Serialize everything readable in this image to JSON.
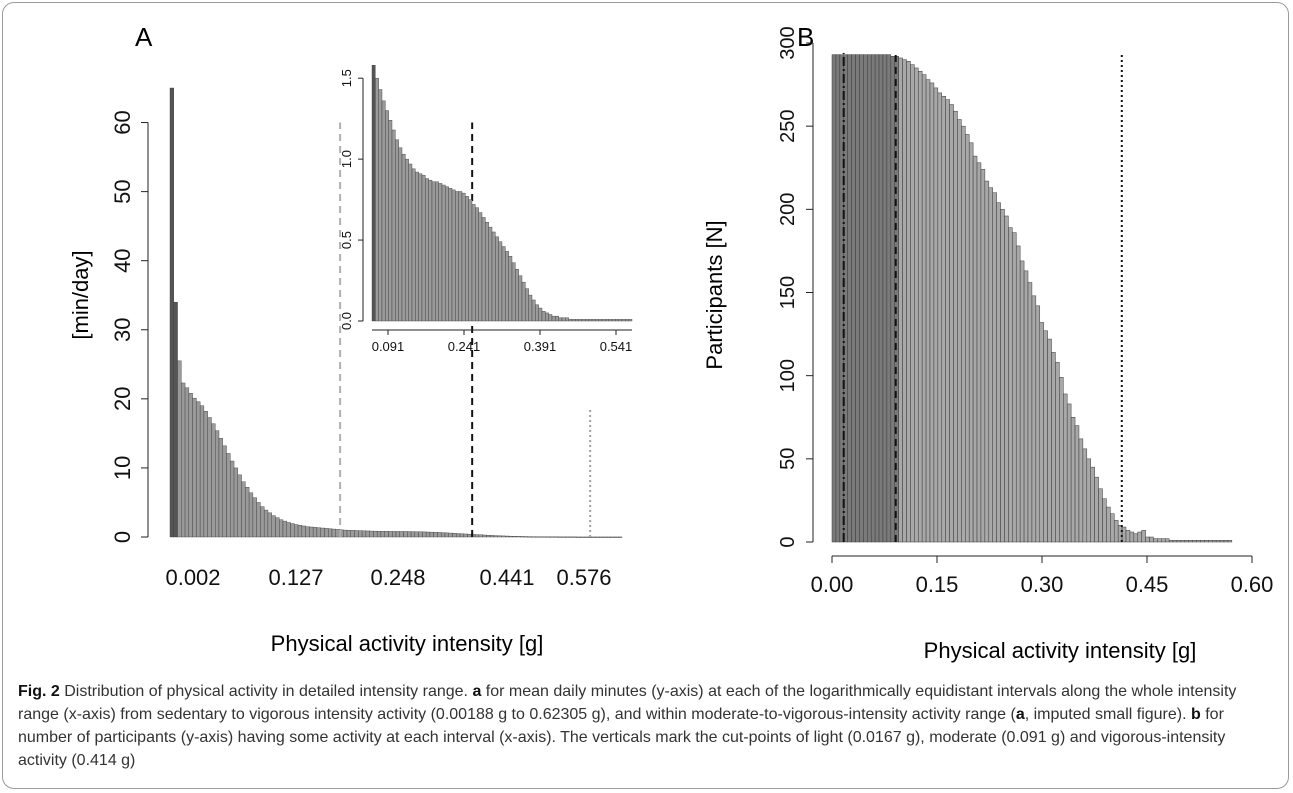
{
  "chart_data": [
    {
      "type": "bar",
      "panel_label": "A",
      "xlabel": "Physical activity intensity  [g]",
      "ylabel": "[min/day]",
      "ylim": [
        0,
        65
      ],
      "yticks": [
        0,
        10,
        20,
        30,
        40,
        50,
        60
      ],
      "x_tick_labels": [
        "0.002",
        "0.127",
        "0.248",
        "0.441",
        "0.576"
      ],
      "x_scale": "log-equidistant intervals (0.00188 g to 0.62305 g)",
      "values_min_per_day": [
        65,
        34,
        25.5,
        22.3,
        21.6,
        20.8,
        20.1,
        19.6,
        19.0,
        18.2,
        17.3,
        16.4,
        15.4,
        14.3,
        13.2,
        12.1,
        11.0,
        10.0,
        9.0,
        8.0,
        7.2,
        6.4,
        5.7,
        5.0,
        4.4,
        3.9,
        3.5,
        3.1,
        2.8,
        2.5,
        2.3,
        2.1,
        1.95,
        1.8,
        1.7,
        1.6,
        1.5,
        1.45,
        1.4,
        1.35,
        1.3,
        1.25,
        1.2,
        1.15,
        1.1,
        1.05,
        1.0,
        0.98,
        0.96,
        0.94,
        0.92,
        0.9,
        0.88,
        0.86,
        0.85,
        0.84,
        0.83,
        0.82,
        0.81,
        0.8,
        0.8,
        0.8,
        0.8,
        0.79,
        0.78,
        0.77,
        0.76,
        0.74,
        0.72,
        0.7,
        0.68,
        0.66,
        0.63,
        0.6,
        0.57,
        0.54,
        0.5,
        0.47,
        0.44,
        0.41,
        0.38,
        0.35,
        0.32,
        0.29,
        0.26,
        0.23,
        0.2,
        0.18,
        0.16,
        0.14,
        0.12,
        0.1,
        0.09,
        0.08,
        0.07,
        0.06,
        0.05,
        0.05,
        0.04,
        0.04,
        0.03,
        0.03,
        0.03,
        0.02,
        0.02,
        0.02,
        0.02,
        0.02,
        0.01,
        0.01,
        0.01,
        0.01,
        0.01,
        0.01,
        0.01,
        0.01,
        0.01,
        0.01,
        0.01,
        0.01
      ],
      "cut_points": [
        {
          "label": "light",
          "value_g": 0.0167,
          "style": "dashed",
          "color": "#b0b0b0",
          "height": 60
        },
        {
          "label": "moderate",
          "value_g": 0.091,
          "style": "dashed",
          "color": "#111111",
          "height": 60
        },
        {
          "label": "vigorous",
          "value_g": 0.414,
          "style": "dotted",
          "color": "#a0a0a0",
          "height": 18.5
        }
      ],
      "inset": {
        "ylim": [
          0,
          1.6
        ],
        "yticks": [
          "0.0",
          "0.5",
          "1.0",
          "1.5"
        ],
        "x_tick_labels": [
          "0.091",
          "0.241",
          "0.391",
          "0.541"
        ],
        "values": [
          1.58,
          1.5,
          1.43,
          1.36,
          1.3,
          1.24,
          1.18,
          1.12,
          1.07,
          1.03,
          1.0,
          0.97,
          0.94,
          0.92,
          0.91,
          0.9,
          0.88,
          0.87,
          0.86,
          0.86,
          0.85,
          0.84,
          0.83,
          0.82,
          0.81,
          0.8,
          0.8,
          0.79,
          0.77,
          0.75,
          0.72,
          0.7,
          0.67,
          0.64,
          0.61,
          0.58,
          0.55,
          0.52,
          0.49,
          0.46,
          0.43,
          0.4,
          0.36,
          0.32,
          0.28,
          0.24,
          0.2,
          0.16,
          0.13,
          0.1,
          0.08,
          0.06,
          0.05,
          0.04,
          0.03,
          0.03,
          0.02,
          0.02,
          0.02,
          0.01,
          0.01,
          0.01,
          0.01,
          0.01,
          0.01,
          0.01,
          0.01,
          0.01,
          0.01,
          0.01,
          0.01,
          0.01,
          0.01,
          0.01,
          0.01,
          0.01,
          0.01,
          0.01
        ]
      }
    },
    {
      "type": "bar",
      "panel_label": "B",
      "xlabel": "Physical activity intensity [g]",
      "ylabel": "Participants [N]",
      "ylim": [
        0,
        300
      ],
      "xlim": [
        0,
        0.6
      ],
      "yticks": [
        0,
        50,
        100,
        150,
        200,
        250,
        300
      ],
      "xticks": [
        0.0,
        0.15,
        0.3,
        0.45,
        0.6
      ],
      "x_tick_labels": [
        "0.00",
        "0.15",
        "0.30",
        "0.45",
        "0.60"
      ],
      "bins": [
        {
          "x": 0.0,
          "y": 293
        },
        {
          "x": 0.0056,
          "y": 293
        },
        {
          "x": 0.0112,
          "y": 293
        },
        {
          "x": 0.0168,
          "y": 293
        },
        {
          "x": 0.0224,
          "y": 293
        },
        {
          "x": 0.028,
          "y": 293
        },
        {
          "x": 0.0336,
          "y": 293
        },
        {
          "x": 0.0392,
          "y": 293
        },
        {
          "x": 0.0448,
          "y": 293
        },
        {
          "x": 0.0504,
          "y": 293
        },
        {
          "x": 0.056,
          "y": 293
        },
        {
          "x": 0.0616,
          "y": 293
        },
        {
          "x": 0.0672,
          "y": 293
        },
        {
          "x": 0.0728,
          "y": 293
        },
        {
          "x": 0.0784,
          "y": 293
        },
        {
          "x": 0.084,
          "y": 292
        },
        {
          "x": 0.0896,
          "y": 292
        },
        {
          "x": 0.0952,
          "y": 291
        },
        {
          "x": 0.1008,
          "y": 290
        },
        {
          "x": 0.1064,
          "y": 289
        },
        {
          "x": 0.112,
          "y": 287
        },
        {
          "x": 0.1176,
          "y": 285
        },
        {
          "x": 0.1232,
          "y": 283
        },
        {
          "x": 0.1288,
          "y": 281
        },
        {
          "x": 0.1344,
          "y": 278
        },
        {
          "x": 0.14,
          "y": 276
        },
        {
          "x": 0.1456,
          "y": 273
        },
        {
          "x": 0.1512,
          "y": 270
        },
        {
          "x": 0.1568,
          "y": 268
        },
        {
          "x": 0.1624,
          "y": 266
        },
        {
          "x": 0.168,
          "y": 263
        },
        {
          "x": 0.1736,
          "y": 259
        },
        {
          "x": 0.1792,
          "y": 254
        },
        {
          "x": 0.1848,
          "y": 250
        },
        {
          "x": 0.1904,
          "y": 245
        },
        {
          "x": 0.196,
          "y": 240
        },
        {
          "x": 0.2016,
          "y": 232
        },
        {
          "x": 0.2072,
          "y": 228
        },
        {
          "x": 0.2128,
          "y": 224
        },
        {
          "x": 0.2184,
          "y": 217
        },
        {
          "x": 0.224,
          "y": 213
        },
        {
          "x": 0.2296,
          "y": 210
        },
        {
          "x": 0.2352,
          "y": 204
        },
        {
          "x": 0.2408,
          "y": 200
        },
        {
          "x": 0.2464,
          "y": 196
        },
        {
          "x": 0.252,
          "y": 189
        },
        {
          "x": 0.2576,
          "y": 186
        },
        {
          "x": 0.2632,
          "y": 178
        },
        {
          "x": 0.2688,
          "y": 169
        },
        {
          "x": 0.2744,
          "y": 163
        },
        {
          "x": 0.28,
          "y": 156
        },
        {
          "x": 0.2856,
          "y": 148
        },
        {
          "x": 0.2912,
          "y": 142
        },
        {
          "x": 0.2968,
          "y": 132
        },
        {
          "x": 0.3024,
          "y": 127
        },
        {
          "x": 0.308,
          "y": 122
        },
        {
          "x": 0.3136,
          "y": 114
        },
        {
          "x": 0.3192,
          "y": 108
        },
        {
          "x": 0.3248,
          "y": 99
        },
        {
          "x": 0.3304,
          "y": 89
        },
        {
          "x": 0.336,
          "y": 83
        },
        {
          "x": 0.3416,
          "y": 75
        },
        {
          "x": 0.3472,
          "y": 70
        },
        {
          "x": 0.3528,
          "y": 62
        },
        {
          "x": 0.3584,
          "y": 56
        },
        {
          "x": 0.364,
          "y": 50
        },
        {
          "x": 0.3696,
          "y": 45
        },
        {
          "x": 0.3752,
          "y": 39
        },
        {
          "x": 0.3808,
          "y": 32
        },
        {
          "x": 0.3864,
          "y": 26
        },
        {
          "x": 0.392,
          "y": 21
        },
        {
          "x": 0.3976,
          "y": 17
        },
        {
          "x": 0.4032,
          "y": 13
        },
        {
          "x": 0.4088,
          "y": 10
        },
        {
          "x": 0.4144,
          "y": 9
        },
        {
          "x": 0.42,
          "y": 7
        },
        {
          "x": 0.4256,
          "y": 6
        },
        {
          "x": 0.4312,
          "y": 5
        },
        {
          "x": 0.4368,
          "y": 6
        },
        {
          "x": 0.4424,
          "y": 7
        },
        {
          "x": 0.448,
          "y": 3
        },
        {
          "x": 0.4536,
          "y": 3
        },
        {
          "x": 0.4592,
          "y": 2
        },
        {
          "x": 0.4648,
          "y": 2
        },
        {
          "x": 0.4704,
          "y": 2
        },
        {
          "x": 0.476,
          "y": 2
        },
        {
          "x": 0.4816,
          "y": 1
        },
        {
          "x": 0.4872,
          "y": 1
        },
        {
          "x": 0.4928,
          "y": 1
        },
        {
          "x": 0.4984,
          "y": 1
        },
        {
          "x": 0.504,
          "y": 1
        },
        {
          "x": 0.5096,
          "y": 1
        },
        {
          "x": 0.5152,
          "y": 1
        },
        {
          "x": 0.5208,
          "y": 1
        },
        {
          "x": 0.5264,
          "y": 1
        },
        {
          "x": 0.532,
          "y": 1
        },
        {
          "x": 0.5376,
          "y": 1
        },
        {
          "x": 0.5432,
          "y": 1
        },
        {
          "x": 0.5488,
          "y": 1
        },
        {
          "x": 0.5544,
          "y": 1
        },
        {
          "x": 0.56,
          "y": 1
        },
        {
          "x": 0.5656,
          "y": 1
        }
      ],
      "bin_width": 0.0056,
      "cut_points": [
        {
          "label": "light",
          "value_g": 0.0167,
          "style": "dashdot",
          "color": "#111111"
        },
        {
          "label": "moderate",
          "value_g": 0.091,
          "style": "dashed",
          "color": "#111111"
        },
        {
          "label": "vigorous",
          "value_g": 0.414,
          "style": "dotted",
          "color": "#111111"
        }
      ]
    }
  ],
  "caption": {
    "fig_label": "Fig. 2",
    "t1": " Distribution of physical activity in detailed intensity range. ",
    "a1": "a",
    "t2": " for mean daily minutes (y-axis) at each of the logarithmically equidistant intervals along the whole intensity range (x-axis) from sedentary to vigorous intensity activity (0.00188 g to 0.62305 g), and within moderate-to-vigorous-intensity activity range (",
    "a2": "a",
    "t3": ", imputed small figure). ",
    "b1": "b",
    "t4": " for number of participants (y-axis) having some activity at each interval (x-axis). The verticals mark the cut-points of light (0.0167 g), moderate (0.091 g) and vigorous-intensity activity (0.414 g)"
  }
}
